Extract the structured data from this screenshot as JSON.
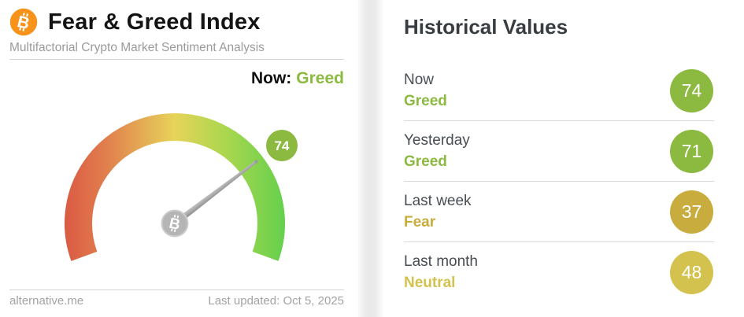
{
  "widget": {
    "header": {
      "title": "Fear & Greed Index",
      "subtitle": "Multifactorial Crypto Market Sentiment Analysis"
    },
    "now": {
      "label": "Now:",
      "value": "Greed"
    },
    "gauge_badge": "74",
    "footer": {
      "site": "alternative.me",
      "updated": "Last updated: Oct 5, 2025"
    }
  },
  "historical": {
    "title": "Historical Values",
    "rows": [
      {
        "label": "Now",
        "classification": "Greed",
        "value": "74",
        "color": "#8cba40"
      },
      {
        "label": "Yesterday",
        "classification": "Greed",
        "value": "71",
        "color": "#8cba40"
      },
      {
        "label": "Last week",
        "classification": "Fear",
        "value": "37",
        "color": "#c9ac3e"
      },
      {
        "label": "Last month",
        "classification": "Neutral",
        "value": "48",
        "color": "#d4c24f"
      }
    ]
  },
  "colors": {
    "bitcoin_orange": "#f7931a",
    "greed_green": "#8cba40",
    "fear_gold": "#c9ac3e",
    "neutral_yellow": "#d4c24f",
    "needle_gray": "#a3a3a3",
    "scale": [
      "#da5a44",
      "#e1814e",
      "#e7d35a",
      "#add74e",
      "#66d04d"
    ]
  },
  "chart_data": {
    "type": "gauge",
    "title": "Fear & Greed Index",
    "value": 74,
    "min": 0,
    "max": 100,
    "classification": "Greed",
    "scale_colors": [
      "#da5a44",
      "#e1814e",
      "#e7d35a",
      "#add74e",
      "#66d04d"
    ],
    "arc_start_deg": 200,
    "arc_end_deg": -20,
    "historical_series": {
      "categories": [
        "Now",
        "Yesterday",
        "Last week",
        "Last month"
      ],
      "values": [
        74,
        71,
        37,
        48
      ],
      "classifications": [
        "Greed",
        "Greed",
        "Fear",
        "Neutral"
      ]
    }
  }
}
